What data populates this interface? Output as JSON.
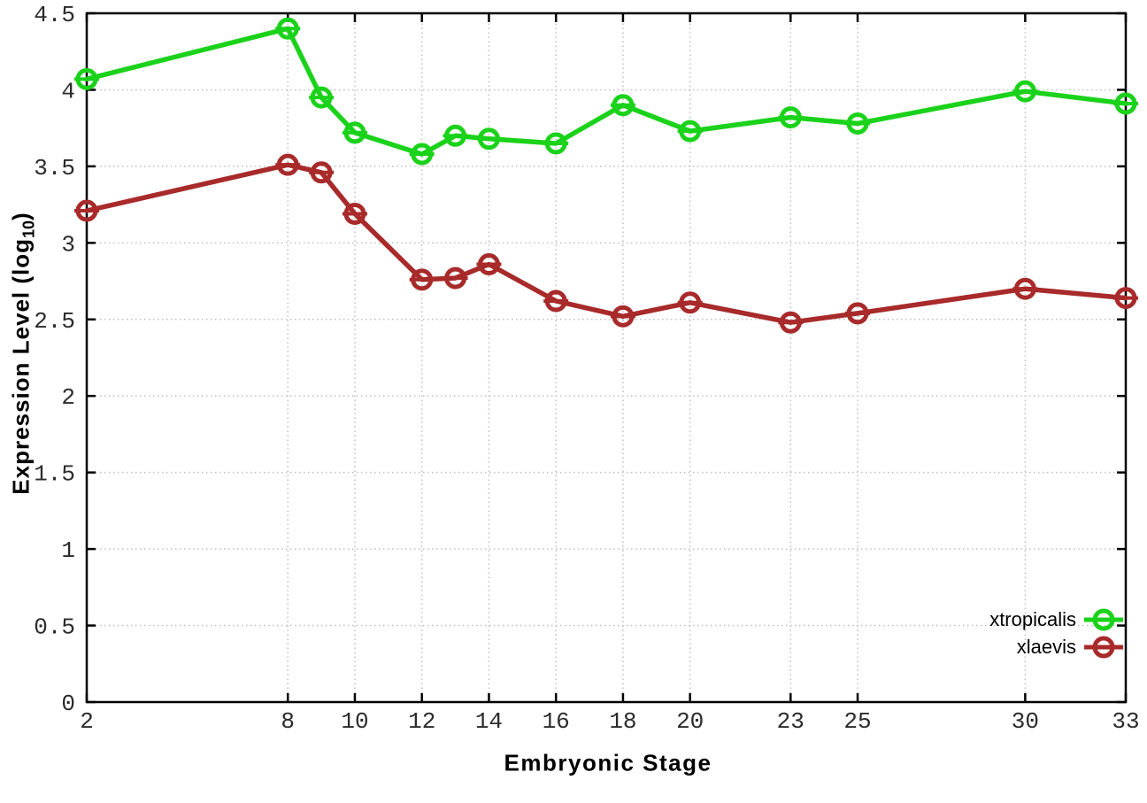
{
  "chart_data": {
    "type": "line",
    "title": "",
    "xlabel": "Embryonic Stage",
    "ylabel": "Expression Level (log10)",
    "ylabel_parts": {
      "main": "Expression Level (log",
      "sub": "10",
      "end": ")"
    },
    "x": [
      2,
      8,
      9,
      10,
      12,
      13,
      14,
      16,
      18,
      20,
      23,
      25,
      30,
      33
    ],
    "xticks": [
      2,
      8,
      10,
      12,
      14,
      16,
      18,
      20,
      23,
      25,
      30,
      33
    ],
    "yticks": [
      0,
      0.5,
      1,
      1.5,
      2,
      2.5,
      3,
      3.5,
      4,
      4.5
    ],
    "xlim": [
      2,
      33
    ],
    "ylim": [
      0,
      4.5
    ],
    "grid": true,
    "grid_style": "dotted",
    "legend_position": "bottom-right",
    "marker": "open-circle-with-horizontal-bar",
    "series": [
      {
        "name": "xtropicalis",
        "color": "#1bd21b",
        "values": [
          4.07,
          4.4,
          3.95,
          3.72,
          3.58,
          3.7,
          3.68,
          3.65,
          3.9,
          3.73,
          3.82,
          3.78,
          3.99,
          3.91
        ]
      },
      {
        "name": "xlaevis",
        "color": "#a82a2a",
        "values": [
          3.21,
          3.51,
          3.46,
          3.19,
          2.76,
          2.77,
          2.86,
          2.62,
          2.52,
          2.61,
          2.48,
          2.54,
          2.7,
          2.64
        ]
      }
    ],
    "colors": {
      "grid": "#bfbfbf",
      "axis": "#000000",
      "tick_text": "#2b2b2b"
    }
  }
}
